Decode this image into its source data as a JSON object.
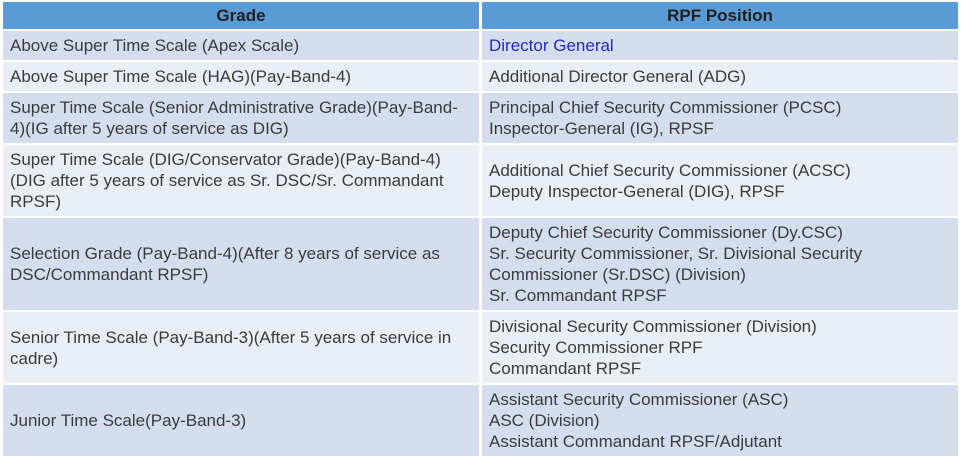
{
  "table": {
    "columns": [
      {
        "label": "Grade"
      },
      {
        "label": "RPF Position"
      }
    ],
    "rows": [
      {
        "grade": "Above Super Time Scale (Apex Scale)",
        "positions": [
          {
            "text": "Director General",
            "link": true
          }
        ]
      },
      {
        "grade": "Above Super Time Scale (HAG)(Pay-Band-4)",
        "positions": [
          {
            "text": "Additional Director General (ADG)",
            "link": false
          }
        ]
      },
      {
        "grade": "Super Time Scale (Senior Administrative Grade)(Pay-Band-4)(IG after 5 years of service as DIG)",
        "positions": [
          {
            "text": "Principal Chief Security Commissioner (PCSC)",
            "link": false
          },
          {
            "text": "Inspector-General (IG), RPSF",
            "link": false
          }
        ]
      },
      {
        "grade": "Super Time Scale (DIG/Conservator Grade)(Pay-Band-4)(DIG after 5 years of service as Sr. DSC/Sr. Commandant RPSF)",
        "positions": [
          {
            "text": "Additional Chief Security Commissioner (ACSC)",
            "link": false
          },
          {
            "text": "Deputy Inspector-General (DIG), RPSF",
            "link": false
          }
        ]
      },
      {
        "grade": "Selection Grade (Pay-Band-4)(After 8 years of service as DSC/Commandant RPSF)",
        "positions": [
          {
            "text": "Deputy Chief Security Commissioner (Dy.CSC)",
            "link": false
          },
          {
            "text": "Sr. Security Commissioner, Sr. Divisional Security Commissioner (Sr.DSC) (Division)",
            "link": false
          },
          {
            "text": "Sr. Commandant RPSF",
            "link": false
          }
        ]
      },
      {
        "grade": "Senior Time Scale (Pay-Band-3)(After 5 years of service in cadre)",
        "positions": [
          {
            "text": "Divisional Security Commissioner (Division)",
            "link": false
          },
          {
            "text": "Security Commissioner RPF",
            "link": false
          },
          {
            "text": "Commandant RPSF",
            "link": false
          }
        ]
      },
      {
        "grade": "Junior Time Scale(Pay-Band-3)",
        "positions": [
          {
            "text": "Assistant Security Commissioner (ASC)",
            "link": false
          },
          {
            "text": "ASC (Division)",
            "link": false
          },
          {
            "text": "Assistant Commandant RPSF/Adjutant",
            "link": false
          }
        ]
      }
    ]
  },
  "colors": {
    "header_bg": "#5B9BD5",
    "header_text": "#1F1F1F",
    "row_band_dark": "#D3DDEE",
    "row_band_light": "#E9EDF6",
    "body_text": "#3B3B3B",
    "link_text": "#2929C0",
    "grid_gap": "#FFFFFF"
  }
}
